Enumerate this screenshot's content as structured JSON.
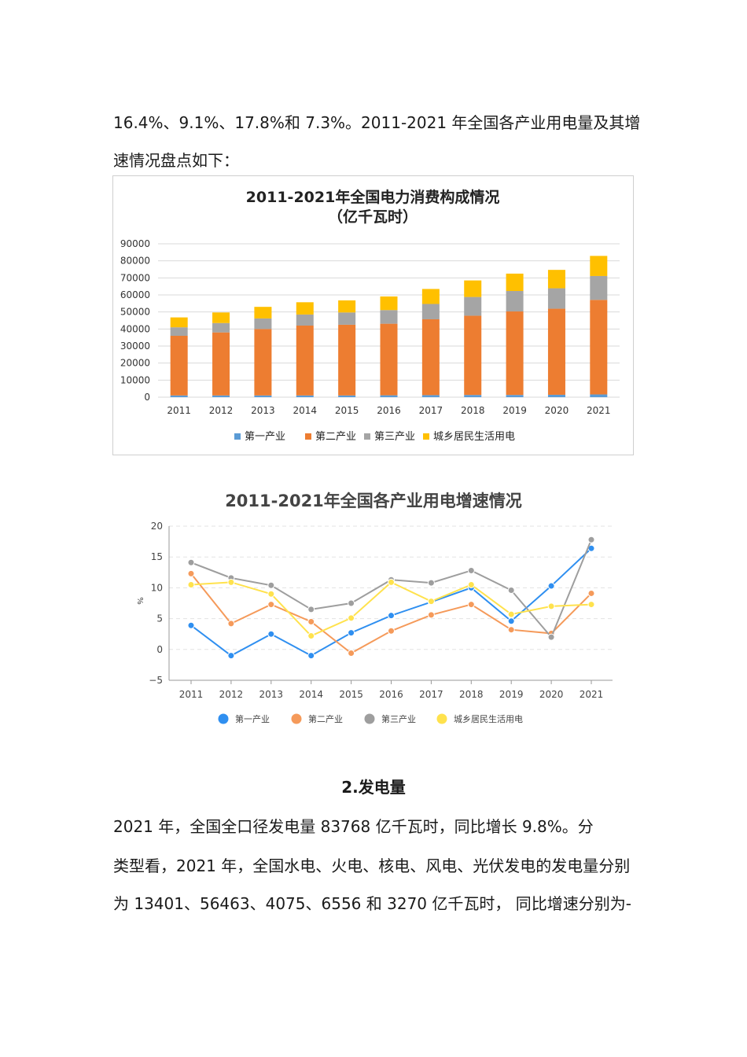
{
  "paragraphs": {
    "p1_line1": "16.4%、9.1%、17.8%和 7.3%。2011-2021 年全国各产业用电量及其增",
    "p1_line2": "速情况盘点如下：",
    "heading2": "2.发电量",
    "p2_line1": "2021 年，全国全口径发电量 83768 亿千瓦时，同比增长 9.8%。分",
    "p2_line2": "类型看，2021 年，全国水电、火电、核电、风电、光伏发电的发电量分别",
    "p2_line3": "为 13401、56463、4075、6556 和 3270 亿千瓦时， 同比增速分别为-"
  },
  "chart_data": [
    {
      "type": "bar",
      "stacked": true,
      "title": "2011-2021年全国电力消费构成情况",
      "subtitle": "（亿千瓦时）",
      "categories": [
        "2011",
        "2012",
        "2013",
        "2014",
        "2015",
        "2016",
        "2017",
        "2018",
        "2019",
        "2020",
        "2021"
      ],
      "series": [
        {
          "name": "第一产业",
          "color": "#5b9bd5",
          "values": [
            1000,
            1000,
            1000,
            1000,
            1000,
            1100,
            1200,
            1300,
            1300,
            1400,
            1600
          ]
        },
        {
          "name": "第二产业",
          "color": "#ed7d31",
          "values": [
            35000,
            37000,
            39000,
            41000,
            41500,
            42000,
            44500,
            46500,
            49000,
            50500,
            55500
          ]
        },
        {
          "name": "第三产业",
          "color": "#a5a5a5",
          "values": [
            5000,
            5500,
            6200,
            6500,
            7200,
            8000,
            9000,
            11000,
            12000,
            12000,
            14000
          ]
        },
        {
          "name": "城乡居民生活用电",
          "color": "#ffc000",
          "values": [
            5800,
            6200,
            6800,
            7200,
            7100,
            8000,
            8800,
            9700,
            10200,
            10800,
            11800
          ]
        }
      ],
      "yticks": [
        "0",
        "10000",
        "20000",
        "30000",
        "40000",
        "50000",
        "60000",
        "70000",
        "80000",
        "90000"
      ],
      "ylim": [
        0,
        90000
      ],
      "grid": true,
      "legend": "bottom"
    },
    {
      "type": "line",
      "title": "2011-2021年全国各产业用电增速情况",
      "ylabel": "%",
      "categories": [
        "2011",
        "2012",
        "2013",
        "2014",
        "2015",
        "2016",
        "2017",
        "2018",
        "2019",
        "2020",
        "2021"
      ],
      "series": [
        {
          "name": "第一产业",
          "color": "#2f8ff0",
          "values": [
            3.9,
            -1.0,
            2.5,
            -1.0,
            2.7,
            5.5,
            7.7,
            10.0,
            4.6,
            10.3,
            16.4
          ]
        },
        {
          "name": "第二产业",
          "color": "#f59a5a",
          "values": [
            12.3,
            4.2,
            7.3,
            4.5,
            -0.6,
            3.0,
            5.6,
            7.3,
            3.2,
            2.6,
            9.1
          ]
        },
        {
          "name": "第三产业",
          "color": "#9e9e9e",
          "values": [
            14.1,
            11.6,
            10.4,
            6.5,
            7.5,
            11.3,
            10.8,
            12.8,
            9.6,
            2.0,
            17.8
          ]
        },
        {
          "name": "城乡居民生活用电",
          "color": "#ffe24d",
          "values": [
            10.5,
            10.9,
            9.0,
            2.2,
            5.1,
            10.9,
            7.8,
            10.5,
            5.7,
            7.0,
            7.3
          ]
        }
      ],
      "yticks": [
        "−5",
        "0",
        "5",
        "10",
        "15",
        "20"
      ],
      "ylim": [
        -5,
        20
      ],
      "grid": true,
      "legend": "bottom"
    }
  ]
}
